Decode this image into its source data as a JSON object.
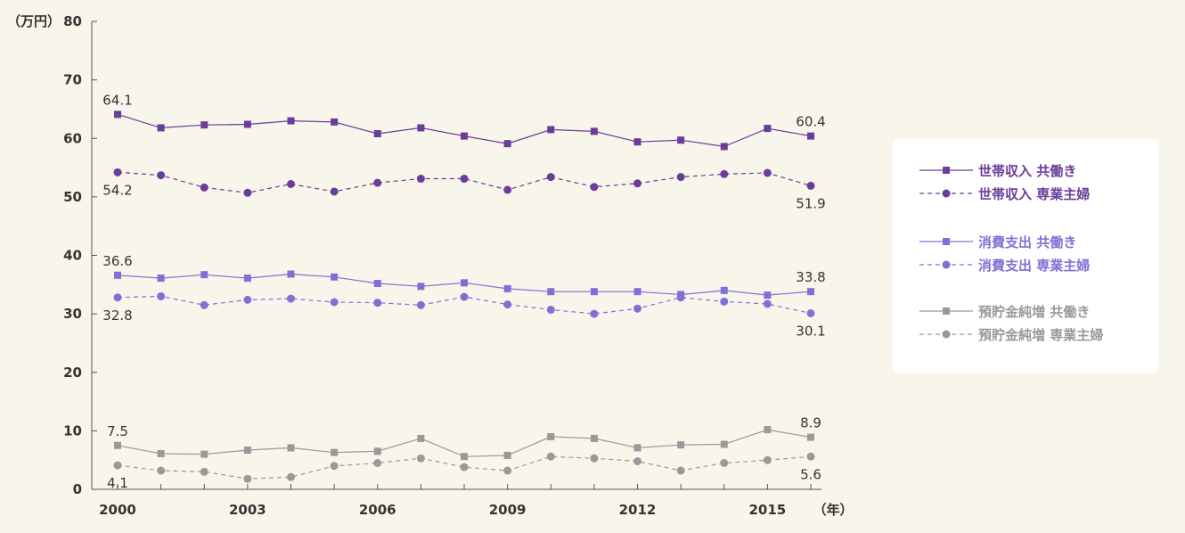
{
  "chart_data": {
    "type": "line",
    "y_unit_label": "（万円）",
    "x_unit_label": "（年）",
    "ylim": [
      0,
      80
    ],
    "yticks": [
      "0",
      "10",
      "20",
      "30",
      "40",
      "50",
      "60",
      "70",
      "80"
    ],
    "x": [
      2000,
      2001,
      2002,
      2003,
      2004,
      2005,
      2006,
      2007,
      2008,
      2009,
      2010,
      2011,
      2012,
      2013,
      2014,
      2015,
      2016
    ],
    "xtick_labels": [
      "2000",
      "2003",
      "2006",
      "2009",
      "2012",
      "2015"
    ],
    "grid": false,
    "legend_position": "right",
    "series": [
      {
        "name": "世帯収入 共働き",
        "color": "#6a3d9a",
        "marker": "square",
        "dashed": false,
        "values": [
          64.1,
          61.8,
          62.3,
          62.4,
          63.0,
          62.8,
          60.8,
          61.8,
          60.4,
          59.1,
          61.5,
          61.2,
          59.4,
          59.7,
          58.6,
          61.7,
          60.4
        ]
      },
      {
        "name": "世帯収入 専業主婦",
        "color": "#6a3d9a",
        "marker": "circle",
        "dashed": true,
        "values": [
          54.2,
          53.7,
          51.6,
          50.7,
          52.2,
          50.9,
          52.4,
          53.1,
          53.1,
          51.2,
          53.4,
          51.7,
          52.3,
          53.4,
          53.9,
          54.1,
          51.9
        ]
      },
      {
        "name": "消費支出 共働き",
        "color": "#8070d6",
        "marker": "square",
        "dashed": false,
        "values": [
          36.6,
          36.1,
          36.7,
          36.1,
          36.8,
          36.3,
          35.2,
          34.7,
          35.3,
          34.3,
          33.8,
          33.8,
          33.8,
          33.3,
          34.0,
          33.2,
          33.8
        ]
      },
      {
        "name": "消費支出 専業主婦",
        "color": "#8070d6",
        "marker": "circle",
        "dashed": true,
        "values": [
          32.8,
          33.0,
          31.5,
          32.4,
          32.6,
          32.0,
          31.9,
          31.5,
          32.9,
          31.6,
          30.7,
          30.0,
          30.9,
          32.8,
          32.1,
          31.7,
          30.1
        ]
      },
      {
        "name": "預貯金純増 共働き",
        "color": "#999999",
        "marker": "square",
        "dashed": false,
        "values": [
          7.5,
          6.1,
          6.0,
          6.7,
          7.1,
          6.3,
          6.5,
          8.7,
          5.6,
          5.8,
          9.0,
          8.7,
          7.1,
          7.6,
          7.7,
          10.2,
          8.9
        ]
      },
      {
        "name": "預貯金純増 専業主婦",
        "color": "#999999",
        "marker": "circle",
        "dashed": true,
        "values": [
          4.1,
          3.2,
          3.0,
          1.8,
          2.1,
          4.0,
          4.5,
          5.3,
          3.8,
          3.2,
          5.6,
          5.3,
          4.8,
          3.2,
          4.5,
          5.0,
          5.6
        ]
      }
    ],
    "annotations": [
      {
        "text": "64.1",
        "x": 2000,
        "y": 64.1,
        "anchor": "above"
      },
      {
        "text": "60.4",
        "x": 2016,
        "y": 60.4,
        "anchor": "above"
      },
      {
        "text": "54.2",
        "x": 2000,
        "y": 54.2,
        "anchor": "below"
      },
      {
        "text": "51.9",
        "x": 2016,
        "y": 51.9,
        "anchor": "below"
      },
      {
        "text": "36.6",
        "x": 2000,
        "y": 36.6,
        "anchor": "above"
      },
      {
        "text": "33.8",
        "x": 2016,
        "y": 33.8,
        "anchor": "above"
      },
      {
        "text": "32.8",
        "x": 2000,
        "y": 32.8,
        "anchor": "below"
      },
      {
        "text": "30.1",
        "x": 2016,
        "y": 30.1,
        "anchor": "below"
      },
      {
        "text": "7.5",
        "x": 2000,
        "y": 7.5,
        "anchor": "above"
      },
      {
        "text": "8.9",
        "x": 2016,
        "y": 8.9,
        "anchor": "above"
      },
      {
        "text": "4.1",
        "x": 2000,
        "y": 4.1,
        "anchor": "below"
      },
      {
        "text": "5.6",
        "x": 2016,
        "y": 5.6,
        "anchor": "below"
      }
    ]
  }
}
